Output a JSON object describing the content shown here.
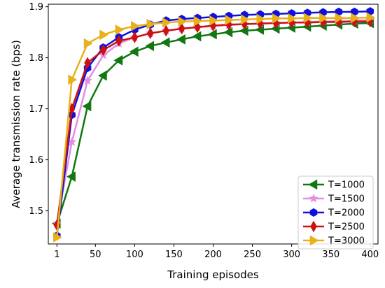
{
  "chart_data": {
    "type": "line",
    "xlabel": "Training episodes",
    "ylabel": "Average transmission rate (bps)",
    "xlim": [
      -10,
      410
    ],
    "ylim": [
      1.435,
      1.905
    ],
    "xticks": [
      1,
      50,
      100,
      150,
      200,
      250,
      300,
      350,
      400
    ],
    "xtick_labels": [
      "1",
      "50",
      "100",
      "150",
      "200",
      "250",
      "300",
      "350",
      "400"
    ],
    "yticks": [
      1.5,
      1.6,
      1.7,
      1.8,
      1.9
    ],
    "ytick_labels": [
      "1.5",
      "1.6",
      "1.7",
      "1.8",
      "1.9"
    ],
    "x": [
      1,
      20,
      40,
      60,
      80,
      100,
      120,
      140,
      160,
      180,
      200,
      220,
      240,
      260,
      280,
      300,
      320,
      340,
      360,
      380,
      400
    ],
    "grid": false,
    "legend_position": "lower-right",
    "series": [
      {
        "name": "T=1000",
        "color": "#117711",
        "marker": "triangle-left",
        "values": [
          1.475,
          1.567,
          1.705,
          1.765,
          1.795,
          1.812,
          1.823,
          1.83,
          1.836,
          1.842,
          1.846,
          1.85,
          1.853,
          1.855,
          1.857,
          1.859,
          1.861,
          1.863,
          1.865,
          1.867,
          1.868
        ]
      },
      {
        "name": "T=1500",
        "color": "#e28ee2",
        "marker": "star",
        "values": [
          1.475,
          1.635,
          1.755,
          1.805,
          1.828,
          1.84,
          1.848,
          1.853,
          1.857,
          1.86,
          1.862,
          1.864,
          1.866,
          1.867,
          1.868,
          1.869,
          1.87,
          1.871,
          1.872,
          1.873,
          1.874
        ]
      },
      {
        "name": "T=2000",
        "color": "#1010dd",
        "marker": "hexagon",
        "values": [
          1.451,
          1.688,
          1.78,
          1.82,
          1.84,
          1.855,
          1.865,
          1.873,
          1.876,
          1.878,
          1.88,
          1.882,
          1.884,
          1.885,
          1.886,
          1.887,
          1.888,
          1.889,
          1.89,
          1.89,
          1.891
        ]
      },
      {
        "name": "T=2500",
        "color": "#cc1111",
        "marker": "thin-diamond",
        "values": [
          1.472,
          1.7,
          1.79,
          1.815,
          1.833,
          1.84,
          1.848,
          1.853,
          1.857,
          1.86,
          1.863,
          1.865,
          1.866,
          1.867,
          1.868,
          1.869,
          1.869,
          1.87,
          1.87,
          1.871,
          1.871
        ]
      },
      {
        "name": "T=3000",
        "color": "#e8b11a",
        "marker": "triangle-right",
        "values": [
          1.448,
          1.757,
          1.828,
          1.845,
          1.855,
          1.862,
          1.866,
          1.869,
          1.871,
          1.872,
          1.873,
          1.874,
          1.875,
          1.876,
          1.877,
          1.877,
          1.878,
          1.878,
          1.878,
          1.878,
          1.879
        ]
      }
    ]
  }
}
